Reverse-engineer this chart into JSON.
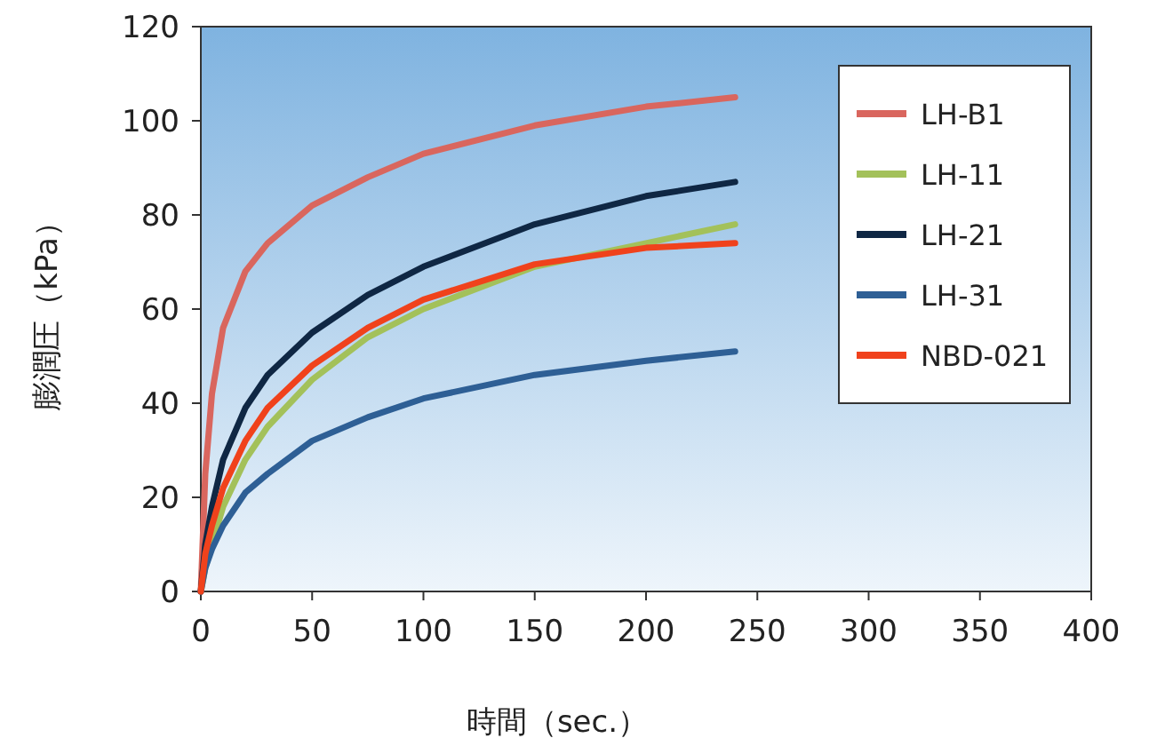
{
  "chart_data": {
    "type": "line",
    "xlabel": "時間（sec.）",
    "ylabel": "膨潤圧（kPa）",
    "x": [
      0,
      2,
      5,
      10,
      20,
      30,
      50,
      75,
      100,
      150,
      200,
      240
    ],
    "series": [
      {
        "name": "LH-B1",
        "color": "#d9665e",
        "values": [
          0,
          25,
          42,
          56,
          68,
          74,
          82,
          88,
          93,
          99,
          103,
          105
        ]
      },
      {
        "name": "LH-11",
        "color": "#a3c15a",
        "values": [
          0,
          5,
          10,
          18,
          28,
          35,
          45,
          54,
          60,
          69,
          74,
          78
        ]
      },
      {
        "name": "LH-21",
        "color": "#0f2744",
        "values": [
          0,
          10,
          18,
          28,
          39,
          46,
          55,
          63,
          69,
          78,
          84,
          87
        ]
      },
      {
        "name": "LH-31",
        "color": "#2e5f95",
        "values": [
          0,
          5,
          9,
          14,
          21,
          25,
          32,
          37,
          41,
          46,
          49,
          51
        ]
      },
      {
        "name": "NBD-021",
        "color": "#f0421c",
        "values": [
          0,
          8,
          14,
          22,
          32,
          39,
          48,
          56,
          62,
          69.5,
          73,
          74
        ]
      }
    ],
    "xlim": [
      0,
      400
    ],
    "ylim": [
      0,
      120
    ],
    "xticks": [
      0,
      50,
      100,
      150,
      200,
      250,
      300,
      350,
      400
    ],
    "yticks": [
      0,
      20,
      40,
      60,
      80,
      100,
      120
    ],
    "legend": "top right"
  }
}
